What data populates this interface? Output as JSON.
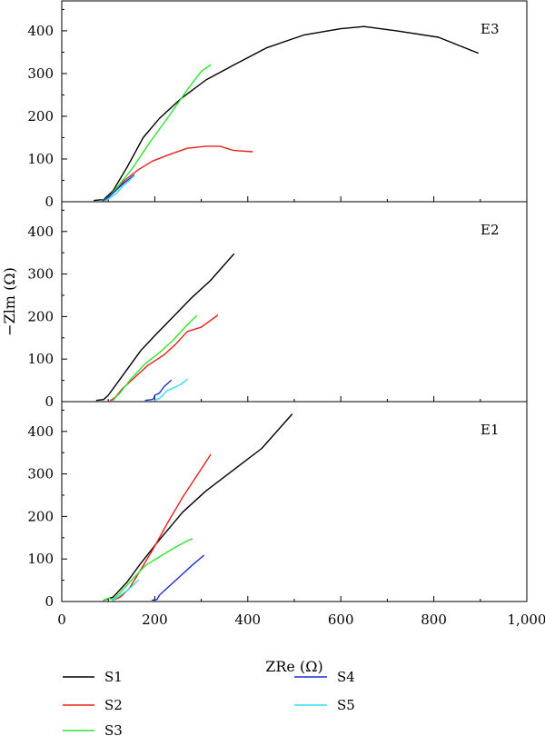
{
  "chart_data": [
    {
      "type": "line",
      "panel": "E3",
      "title": "E3",
      "xlim": [
        0,
        1000
      ],
      "ylim": [
        0,
        470
      ],
      "yticks": [
        0,
        100,
        200,
        300,
        400
      ],
      "series": [
        {
          "name": "S1",
          "color": "#000000",
          "points": [
            [
              70,
              3
            ],
            [
              90,
              5
            ],
            [
              110,
              25
            ],
            [
              140,
              80
            ],
            [
              175,
              150
            ],
            [
              210,
              195
            ],
            [
              255,
              240
            ],
            [
              310,
              285
            ],
            [
              370,
              320
            ],
            [
              440,
              360
            ],
            [
              520,
              390
            ],
            [
              600,
              405
            ],
            [
              650,
              410
            ],
            [
              720,
              400
            ],
            [
              810,
              385
            ],
            [
              895,
              348
            ]
          ]
        },
        {
          "name": "S2",
          "color": "#e8201a",
          "points": [
            [
              90,
              3
            ],
            [
              100,
              10
            ],
            [
              115,
              25
            ],
            [
              135,
              50
            ],
            [
              165,
              75
            ],
            [
              195,
              95
            ],
            [
              230,
              110
            ],
            [
              270,
              125
            ],
            [
              310,
              130
            ],
            [
              340,
              130
            ],
            [
              370,
              120
            ],
            [
              410,
              117
            ]
          ]
        },
        {
          "name": "S3",
          "color": "#2ee62e",
          "points": [
            [
              85,
              3
            ],
            [
              100,
              10
            ],
            [
              120,
              35
            ],
            [
              150,
              75
            ],
            [
              190,
              140
            ],
            [
              230,
              200
            ],
            [
              270,
              262
            ],
            [
              300,
              305
            ],
            [
              320,
              320
            ]
          ]
        },
        {
          "name": "S4",
          "color": "#1a2fd0",
          "points": [
            [
              88,
              3
            ],
            [
              100,
              10
            ],
            [
              110,
              20
            ],
            [
              120,
              30
            ],
            [
              135,
              45
            ],
            [
              148,
              56
            ],
            [
              155,
              62
            ]
          ]
        },
        {
          "name": "S5",
          "color": "#33ddee",
          "points": [
            [
              95,
              3
            ],
            [
              105,
              10
            ],
            [
              118,
              20
            ],
            [
              130,
              35
            ],
            [
              145,
              50
            ],
            [
              155,
              60
            ]
          ]
        }
      ]
    },
    {
      "type": "line",
      "panel": "E2",
      "title": "E2",
      "xlim": [
        0,
        1000
      ],
      "ylim": [
        0,
        470
      ],
      "yticks": [
        0,
        100,
        200,
        300,
        400
      ],
      "series": [
        {
          "name": "S1",
          "color": "#000000",
          "points": [
            [
              75,
              3
            ],
            [
              90,
              5
            ],
            [
              100,
              15
            ],
            [
              130,
              60
            ],
            [
              170,
              120
            ],
            [
              200,
              155
            ],
            [
              240,
              200
            ],
            [
              280,
              245
            ],
            [
              320,
              285
            ],
            [
              370,
              347
            ]
          ]
        },
        {
          "name": "S2",
          "color": "#e8201a",
          "points": [
            [
              105,
              3
            ],
            [
              115,
              10
            ],
            [
              130,
              30
            ],
            [
              160,
              60
            ],
            [
              185,
              85
            ],
            [
              220,
              110
            ],
            [
              245,
              135
            ],
            [
              270,
              165
            ],
            [
              300,
              175
            ],
            [
              335,
              203
            ]
          ]
        },
        {
          "name": "S3",
          "color": "#2ee62e",
          "points": [
            [
              110,
              3
            ],
            [
              125,
              20
            ],
            [
              150,
              55
            ],
            [
              180,
              90
            ],
            [
              210,
              115
            ],
            [
              240,
              145
            ],
            [
              265,
              175
            ],
            [
              290,
              202
            ]
          ]
        },
        {
          "name": "S4",
          "color": "#1a2fd0",
          "points": [
            [
              180,
              3
            ],
            [
              195,
              5
            ],
            [
              198,
              8
            ],
            [
              200,
              15
            ],
            [
              210,
              20
            ],
            [
              220,
              35
            ],
            [
              235,
              50
            ]
          ]
        },
        {
          "name": "S5",
          "color": "#33ddee",
          "points": [
            [
              200,
              3
            ],
            [
              210,
              8
            ],
            [
              218,
              15
            ],
            [
              225,
              25
            ],
            [
              240,
              32
            ],
            [
              255,
              40
            ],
            [
              270,
              52
            ]
          ]
        }
      ]
    },
    {
      "type": "line",
      "panel": "E1",
      "title": "E1",
      "xlim": [
        0,
        1000
      ],
      "ylim": [
        0,
        470
      ],
      "yticks": [
        0,
        100,
        200,
        300,
        400
      ],
      "xticks": [
        0,
        200,
        400,
        600,
        800,
        1000
      ],
      "xticklabels": [
        "0",
        "200",
        "400",
        "600",
        "800",
        "1,000"
      ],
      "xlabel": "ZRe (Ω)",
      "ylabel": "−Zlm (Ω)",
      "series": [
        {
          "name": "S1",
          "color": "#000000",
          "points": [
            [
              90,
              3
            ],
            [
              110,
              10
            ],
            [
              140,
              45
            ],
            [
              170,
              90
            ],
            [
              210,
              145
            ],
            [
              260,
              210
            ],
            [
              310,
              260
            ],
            [
              370,
              310
            ],
            [
              430,
              360
            ],
            [
              495,
              440
            ]
          ]
        },
        {
          "name": "S2",
          "color": "#e8201a",
          "points": [
            [
              110,
              3
            ],
            [
              125,
              10
            ],
            [
              145,
              30
            ],
            [
              170,
              75
            ],
            [
              200,
              130
            ],
            [
              230,
              190
            ],
            [
              260,
              245
            ],
            [
              290,
              295
            ],
            [
              320,
              345
            ]
          ]
        },
        {
          "name": "S3",
          "color": "#2ee62e",
          "points": [
            [
              90,
              3
            ],
            [
              100,
              8
            ],
            [
              110,
              5
            ],
            [
              125,
              20
            ],
            [
              150,
              50
            ],
            [
              180,
              85
            ],
            [
              210,
              105
            ],
            [
              240,
              125
            ],
            [
              270,
              143
            ],
            [
              280,
              147
            ]
          ]
        },
        {
          "name": "S4",
          "color": "#1a2fd0",
          "points": [
            [
              195,
              3
            ],
            [
              205,
              5
            ],
            [
              210,
              15
            ],
            [
              230,
              35
            ],
            [
              255,
              60
            ],
            [
              280,
              85
            ],
            [
              305,
              108
            ]
          ]
        },
        {
          "name": "S5",
          "color": "#33ddee",
          "points": [
            [
              110,
              3
            ],
            [
              120,
              10
            ],
            [
              130,
              18
            ],
            [
              140,
              25
            ],
            [
              150,
              35
            ],
            [
              160,
              45
            ],
            [
              165,
              50
            ]
          ]
        }
      ]
    }
  ],
  "legend": {
    "placement": "bottom",
    "items": [
      {
        "label": "S1",
        "color": "#000000"
      },
      {
        "label": "S2",
        "color": "#e8201a"
      },
      {
        "label": "S3",
        "color": "#2ee62e"
      },
      {
        "label": "S4",
        "color": "#1a2fd0"
      },
      {
        "label": "S5",
        "color": "#33ddee"
      }
    ]
  }
}
